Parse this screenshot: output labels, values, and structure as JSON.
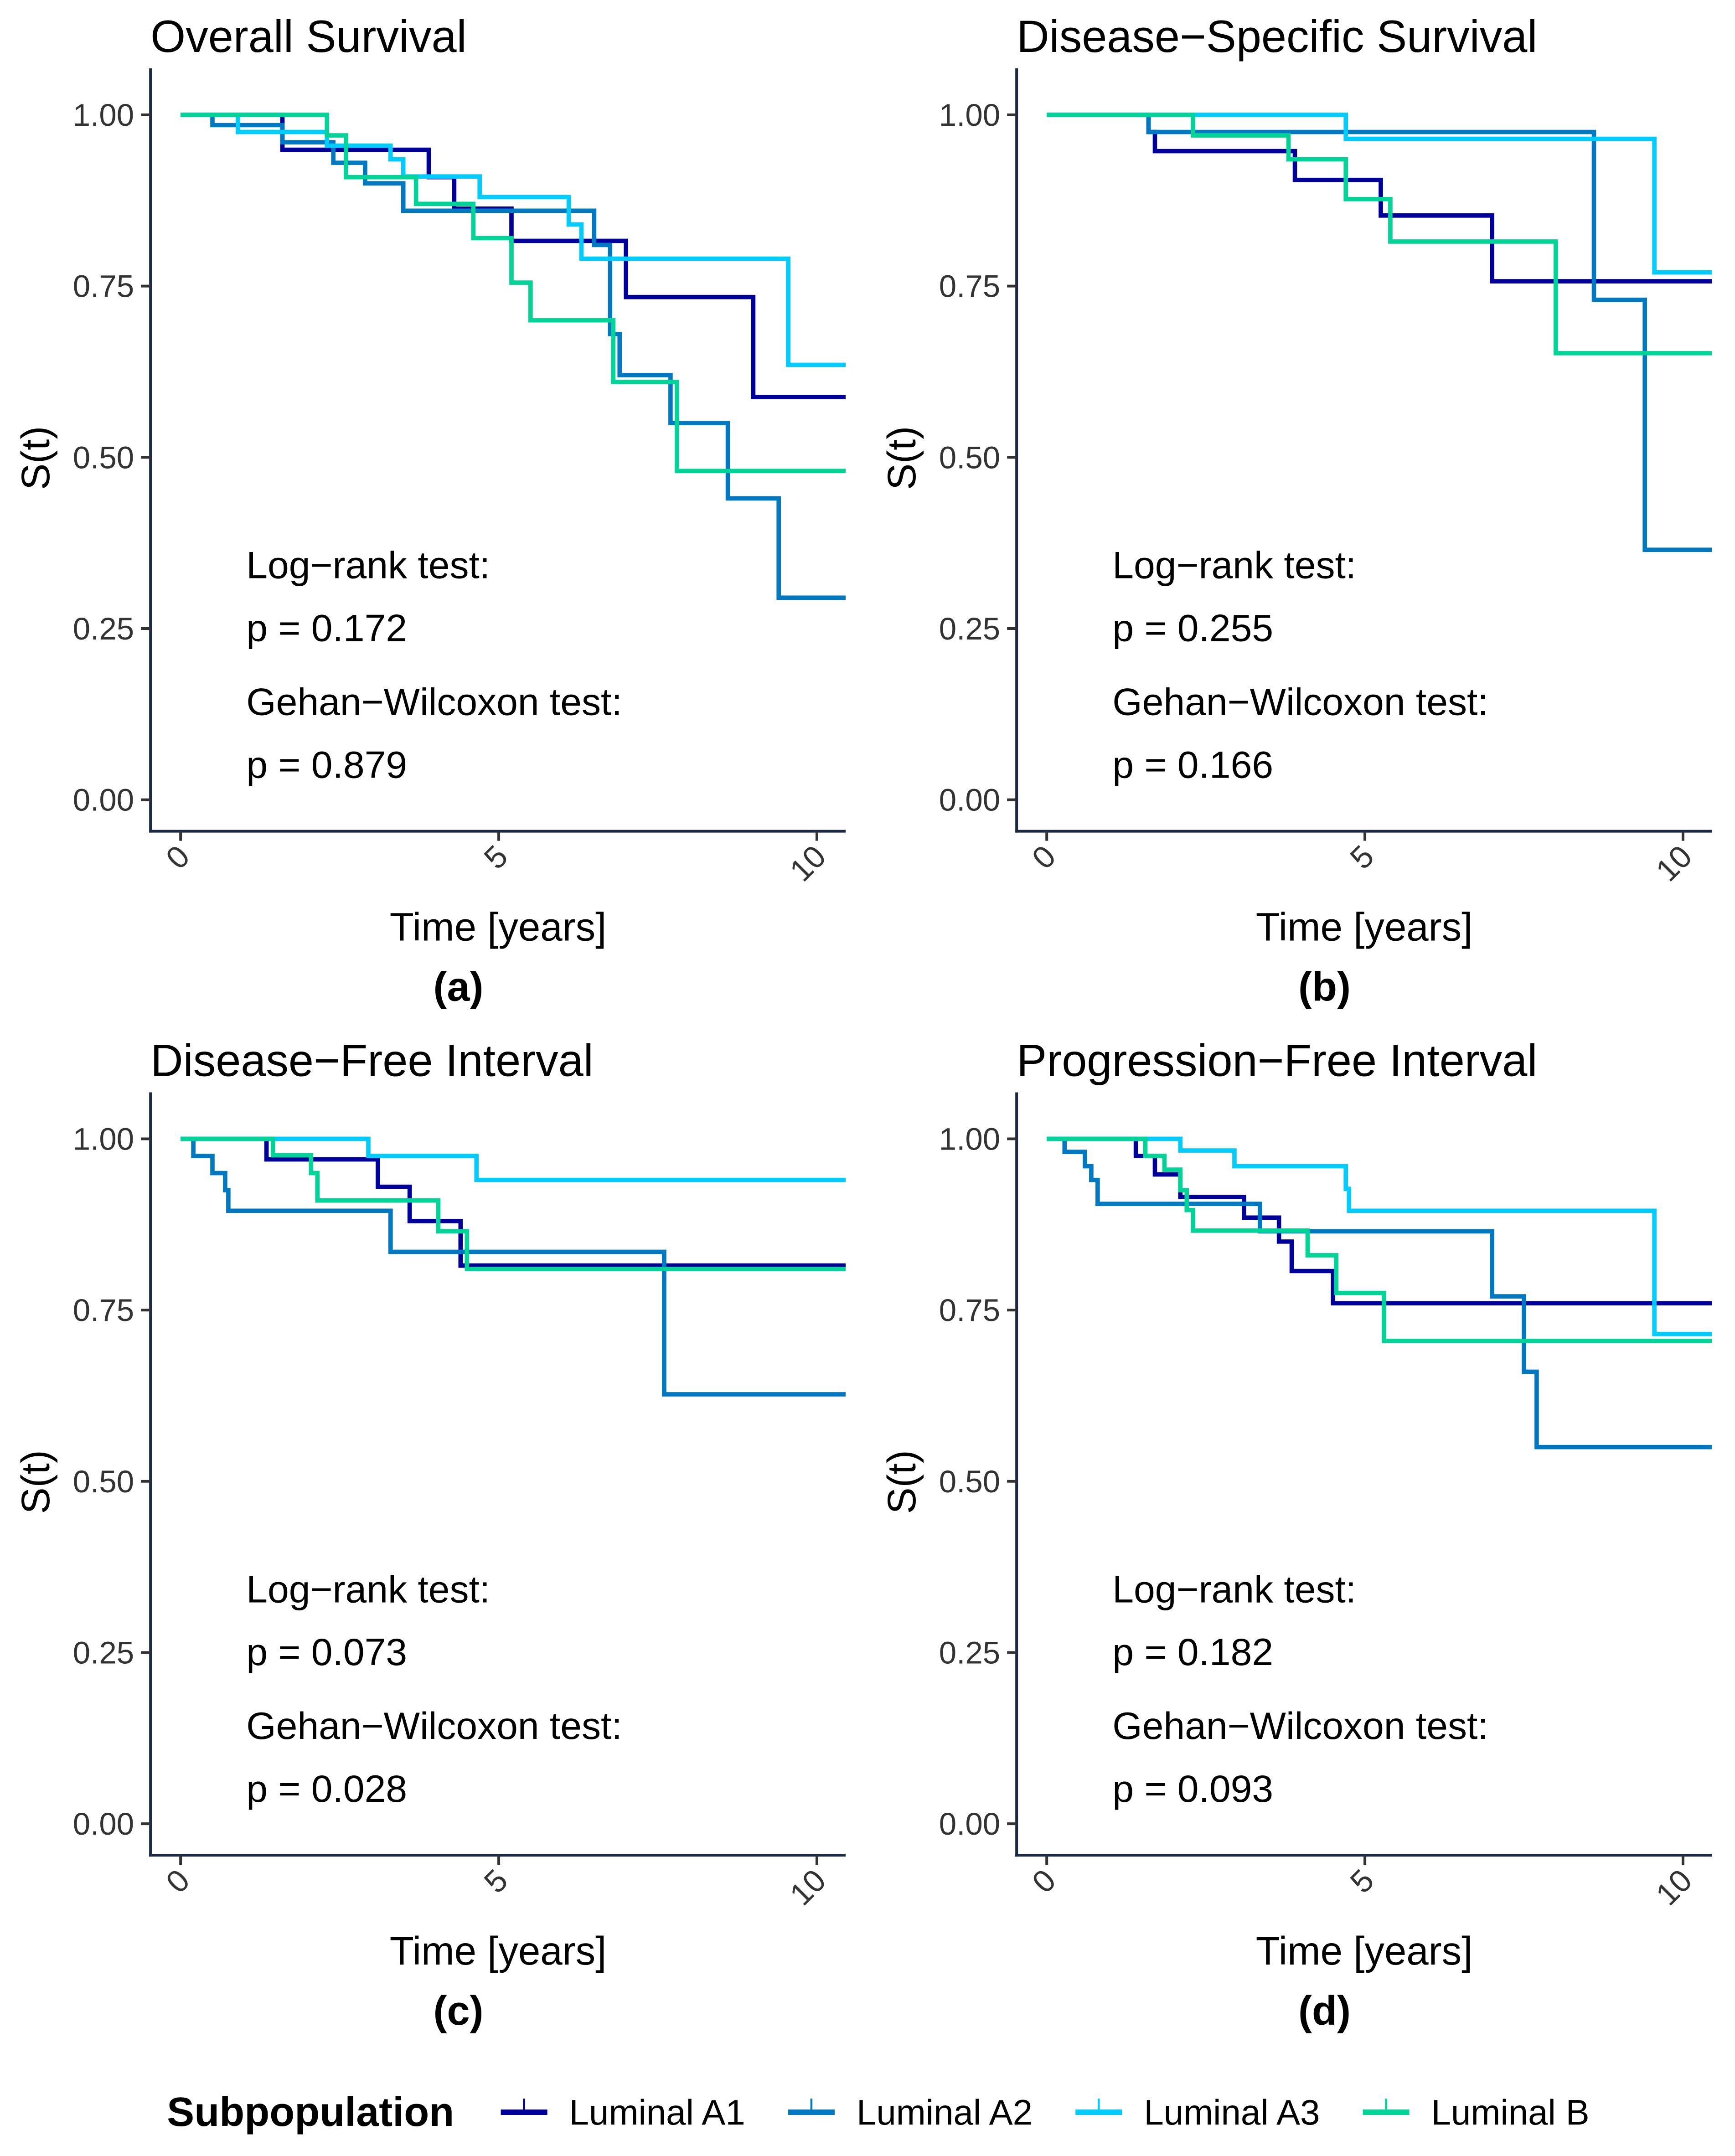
{
  "legend": {
    "title": "Subpopulation",
    "entries": [
      {
        "name": "Luminal A1",
        "color": "#00009B"
      },
      {
        "name": "Luminal A2",
        "color": "#0079C2"
      },
      {
        "name": "Luminal A3",
        "color": "#00CCFF"
      },
      {
        "name": "Luminal B",
        "color": "#00D497"
      }
    ]
  },
  "chart_data": [
    {
      "type": "line",
      "step": true,
      "title": "Overall Survival",
      "panel_label": "(a)",
      "xlabel": "Time [years]",
      "ylabel": "S(t)",
      "xlim": [
        -0.5,
        10.5
      ],
      "ylim": [
        0,
        1.05
      ],
      "xticks": [
        "0",
        "5",
        "10"
      ],
      "yticks": [
        "0.00",
        "0.25",
        "0.50",
        "0.75",
        "1.00"
      ],
      "annotations": [
        "Log−rank test:",
        "p = 0.172",
        "Gehan−Wilcoxon test:",
        "p = 0.879"
      ],
      "series": [
        {
          "name": "Luminal A1",
          "steps": [
            [
              0,
              1
            ],
            [
              1.6,
              0.949
            ],
            [
              3.9,
              0.909
            ],
            [
              4.3,
              0.863
            ],
            [
              5.2,
              0.816
            ],
            [
              7.0,
              0.734
            ],
            [
              9.0,
              0.588
            ]
          ]
        },
        {
          "name": "Luminal A2",
          "steps": [
            [
              0,
              1
            ],
            [
              0.5,
              0.985
            ],
            [
              1.6,
              0.96
            ],
            [
              2.4,
              0.93
            ],
            [
              2.9,
              0.9
            ],
            [
              3.5,
              0.86
            ],
            [
              6.5,
              0.81
            ],
            [
              6.75,
              0.68
            ],
            [
              6.9,
              0.62
            ],
            [
              7.7,
              0.55
            ],
            [
              8.6,
              0.44
            ],
            [
              9.4,
              0.295
            ]
          ]
        },
        {
          "name": "Luminal A3",
          "steps": [
            [
              0,
              1
            ],
            [
              0.9,
              0.975
            ],
            [
              2.3,
              0.955
            ],
            [
              3.3,
              0.935
            ],
            [
              3.5,
              0.91
            ],
            [
              4.7,
              0.88
            ],
            [
              6.1,
              0.84
            ],
            [
              6.3,
              0.79
            ],
            [
              9.55,
              0.635
            ]
          ]
        },
        {
          "name": "Luminal B",
          "steps": [
            [
              0,
              1
            ],
            [
              2.3,
              0.97
            ],
            [
              2.6,
              0.909
            ],
            [
              3.7,
              0.87
            ],
            [
              4.6,
              0.82
            ],
            [
              5.2,
              0.755
            ],
            [
              5.5,
              0.7
            ],
            [
              6.8,
              0.61
            ],
            [
              7.8,
              0.48
            ]
          ]
        }
      ]
    },
    {
      "type": "line",
      "step": true,
      "title": "Disease−Specific Survival",
      "panel_label": "(b)",
      "xlabel": "Time [years]",
      "ylabel": "S(t)",
      "xlim": [
        -0.5,
        10.5
      ],
      "ylim": [
        0,
        1.05
      ],
      "xticks": [
        "0",
        "5",
        "10"
      ],
      "yticks": [
        "0.00",
        "0.25",
        "0.50",
        "0.75",
        "1.00"
      ],
      "annotations": [
        "Log−rank test:",
        "p = 0.255",
        "Gehan−Wilcoxon test:",
        "p = 0.166"
      ],
      "series": [
        {
          "name": "Luminal A1",
          "steps": [
            [
              0,
              1
            ],
            [
              1.6,
              0.975
            ],
            [
              1.7,
              0.947
            ],
            [
              3.9,
              0.905
            ],
            [
              5.25,
              0.853
            ],
            [
              7.0,
              0.757
            ]
          ]
        },
        {
          "name": "Luminal A2",
          "steps": [
            [
              0,
              1
            ],
            [
              1.6,
              0.975
            ],
            [
              8.6,
              0.73
            ],
            [
              9.4,
              0.365
            ]
          ]
        },
        {
          "name": "Luminal A3",
          "steps": [
            [
              0,
              1
            ],
            [
              4.7,
              0.965
            ],
            [
              9.55,
              0.77
            ]
          ]
        },
        {
          "name": "Luminal B",
          "steps": [
            [
              0,
              1
            ],
            [
              2.3,
              0.97
            ],
            [
              3.8,
              0.935
            ],
            [
              4.7,
              0.877
            ],
            [
              5.4,
              0.815
            ],
            [
              8.0,
              0.652
            ]
          ]
        }
      ]
    },
    {
      "type": "line",
      "step": true,
      "title": "Disease−Free Interval",
      "panel_label": "(c)",
      "xlabel": "Time [years]",
      "ylabel": "S(t)",
      "xlim": [
        -0.5,
        10.5
      ],
      "ylim": [
        0,
        1.05
      ],
      "xticks": [
        "0",
        "5",
        "10"
      ],
      "yticks": [
        "0.00",
        "0.25",
        "0.50",
        "0.75",
        "1.00"
      ],
      "annotations": [
        "Log−rank test:",
        "p = 0.073",
        "Gehan−Wilcoxon test:",
        "p = 0.028"
      ],
      "series": [
        {
          "name": "Luminal A1",
          "steps": [
            [
              0,
              1
            ],
            [
              1.35,
              0.97
            ],
            [
              3.1,
              0.93
            ],
            [
              3.6,
              0.88
            ],
            [
              4.4,
              0.815
            ]
          ]
        },
        {
          "name": "Luminal A2",
          "steps": [
            [
              0,
              1
            ],
            [
              0.2,
              0.975
            ],
            [
              0.5,
              0.95
            ],
            [
              0.7,
              0.925
            ],
            [
              0.75,
              0.895
            ],
            [
              3.3,
              0.835
            ],
            [
              7.6,
              0.627
            ]
          ]
        },
        {
          "name": "Luminal A3",
          "steps": [
            [
              0,
              1
            ],
            [
              2.95,
              0.975
            ],
            [
              4.65,
              0.94
            ]
          ]
        },
        {
          "name": "Luminal B",
          "steps": [
            [
              0,
              1
            ],
            [
              1.45,
              0.976
            ],
            [
              2.05,
              0.95
            ],
            [
              2.15,
              0.91
            ],
            [
              4.05,
              0.865
            ],
            [
              4.5,
              0.81
            ]
          ]
        }
      ]
    },
    {
      "type": "line",
      "step": true,
      "title": "Progression−Free Interval",
      "panel_label": "(d)",
      "xlabel": "Time [years]",
      "ylabel": "S(t)",
      "xlim": [
        -0.5,
        10.5
      ],
      "ylim": [
        0,
        1.05
      ],
      "xticks": [
        "0",
        "5",
        "10"
      ],
      "yticks": [
        "0.00",
        "0.25",
        "0.50",
        "0.75",
        "1.00"
      ],
      "annotations": [
        "Log−rank test:",
        "p = 0.182",
        "Gehan−Wilcoxon test:",
        "p = 0.093"
      ],
      "series": [
        {
          "name": "Luminal A1",
          "steps": [
            [
              0,
              1
            ],
            [
              1.4,
              0.975
            ],
            [
              1.7,
              0.948
            ],
            [
              2.1,
              0.915
            ],
            [
              3.1,
              0.885
            ],
            [
              3.65,
              0.85
            ],
            [
              3.85,
              0.807
            ],
            [
              4.5,
              0.76
            ]
          ]
        },
        {
          "name": "Luminal A2",
          "steps": [
            [
              0,
              1
            ],
            [
              0.28,
              0.981
            ],
            [
              0.6,
              0.96
            ],
            [
              0.7,
              0.94
            ],
            [
              0.8,
              0.905
            ],
            [
              3.35,
              0.865
            ],
            [
              7.0,
              0.77
            ],
            [
              7.5,
              0.66
            ],
            [
              7.7,
              0.55
            ]
          ]
        },
        {
          "name": "Luminal A3",
          "steps": [
            [
              0,
              1
            ],
            [
              2.1,
              0.983
            ],
            [
              2.95,
              0.96
            ],
            [
              4.7,
              0.927
            ],
            [
              4.75,
              0.895
            ],
            [
              9.55,
              0.715
            ]
          ]
        },
        {
          "name": "Luminal B",
          "steps": [
            [
              0,
              1
            ],
            [
              1.55,
              0.975
            ],
            [
              1.85,
              0.955
            ],
            [
              2.1,
              0.925
            ],
            [
              2.2,
              0.896
            ],
            [
              2.3,
              0.866
            ],
            [
              4.1,
              0.83
            ],
            [
              4.55,
              0.775
            ],
            [
              5.3,
              0.705
            ]
          ]
        }
      ]
    }
  ]
}
